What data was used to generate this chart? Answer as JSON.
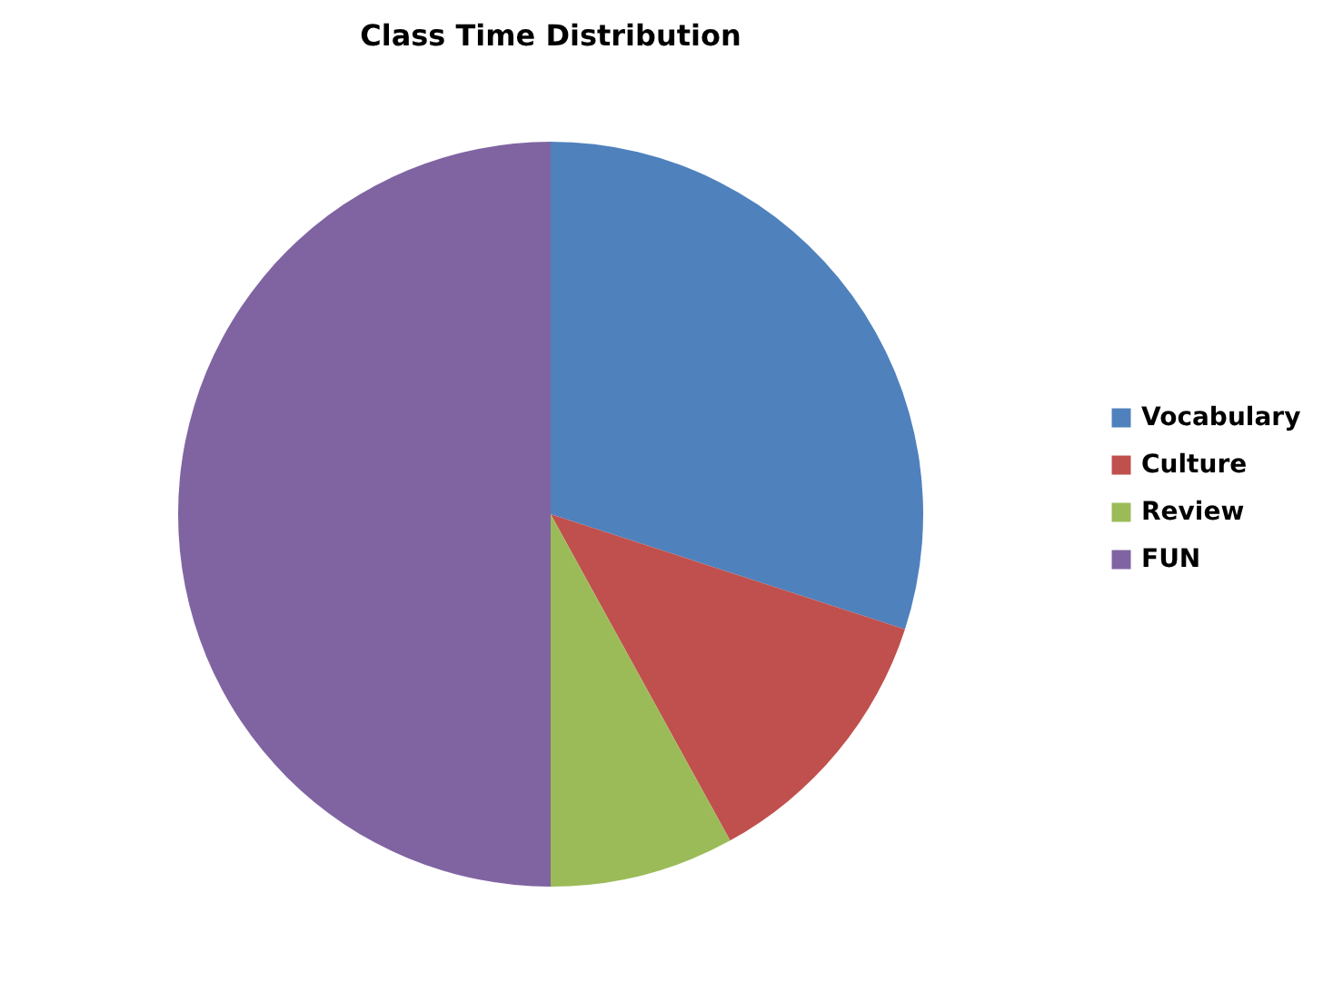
{
  "chart_data": {
    "type": "pie",
    "title": "Class Time Distribution",
    "categories": [
      "Vocabulary",
      "Culture",
      "Review",
      "FUN"
    ],
    "values": [
      30,
      12,
      8,
      50
    ],
    "colors": [
      "#4f81bd",
      "#c0504d",
      "#9bbb59",
      "#8064a2"
    ],
    "legend": "right"
  }
}
